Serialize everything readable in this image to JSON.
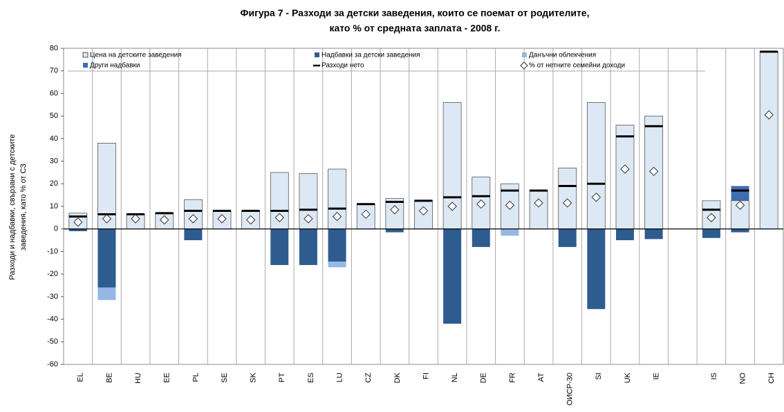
{
  "chart_data": {
    "type": "bar",
    "title": [
      "Фигура 7 - Разходи за детски заведения, които се поемат от родителите,",
      "като % от средната заплата - 2008 г."
    ],
    "y_label": [
      "Разходи и надбавки, свързани с детските",
      "заведения, като % от СЗ"
    ],
    "categories": [
      "EL",
      "BE",
      "HU",
      "EE",
      "PL",
      "SE",
      "SK",
      "PT",
      "ES",
      "LU",
      "CZ",
      "DK",
      "FI",
      "NL",
      "DE",
      "FR",
      "AT",
      "ОИСР-30",
      "SI",
      "UK",
      "IE",
      null,
      "IS",
      "NO",
      "CH"
    ],
    "series": [
      {
        "name": "Цена на детските заведения",
        "color": "#dde8f5",
        "values": [
          7,
          38,
          6.5,
          7,
          13,
          8,
          8,
          25,
          24.5,
          26.5,
          11,
          13.5,
          12.5,
          56,
          23,
          20,
          17,
          27,
          56,
          46,
          50,
          null,
          12.5,
          12.5,
          78.5
        ]
      },
      {
        "name": "Надбавки за детски заведения",
        "color": "#2f5c8f",
        "values": [
          -1,
          -26,
          0,
          0,
          -5,
          0,
          0,
          -16,
          -16,
          -14.5,
          0,
          -1.5,
          0,
          -42,
          -8,
          0,
          0,
          -8,
          -35.5,
          -5,
          -4.5,
          null,
          -4,
          -1.5,
          0
        ]
      },
      {
        "name": "Данъчни облекчения",
        "color": "#95b7e3",
        "values": [
          0,
          -5.5,
          0,
          0,
          0,
          0,
          0,
          0,
          0,
          -2.5,
          0,
          0,
          0,
          0,
          0,
          -3,
          0,
          0,
          0,
          0,
          0,
          null,
          0,
          0,
          0
        ]
      },
      {
        "name": "Други надбавки",
        "color": "#3e6db0",
        "values": [
          0,
          0,
          0,
          0,
          0,
          0,
          0,
          0,
          0,
          0,
          0,
          0,
          0,
          0,
          0,
          0,
          0,
          0,
          0,
          0,
          0,
          null,
          0,
          6.5,
          0
        ]
      },
      {
        "name": "Разходи нето",
        "color": "#000000",
        "values": [
          5.5,
          6.5,
          6.5,
          7,
          8,
          8,
          8,
          8,
          8.5,
          9,
          11,
          12,
          12.5,
          14,
          14.5,
          17,
          17,
          19,
          20,
          41,
          45.5,
          null,
          8.5,
          17,
          78.5
        ]
      },
      {
        "name": "% от нетните семейни доходи",
        "color": "#ffffff",
        "values": [
          3,
          4.5,
          4.5,
          4,
          4.5,
          4.5,
          4,
          5,
          4.5,
          5.5,
          6.5,
          8.5,
          8,
          10,
          11,
          10.5,
          11.5,
          11.5,
          14,
          26.5,
          25.5,
          null,
          5,
          10.5,
          50.5
        ]
      }
    ],
    "ylim": [
      -60,
      80
    ],
    "yticks": [
      -60,
      -50,
      -40,
      -30,
      -20,
      -10,
      0,
      10,
      20,
      30,
      40,
      50,
      60,
      70,
      80
    ],
    "grid": true
  }
}
